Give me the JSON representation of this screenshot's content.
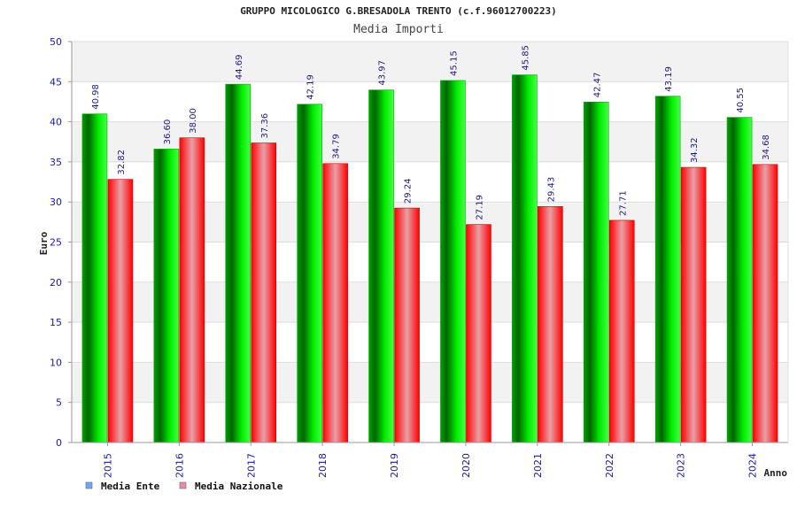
{
  "chart_data": {
    "type": "bar",
    "title": "GRUPPO MICOLOGICO G.BRESADOLA TRENTO (c.f.96012700223)",
    "subtitle": "Media Importi",
    "xlabel": "Anno",
    "ylabel": "Euro",
    "ylim": [
      0,
      50
    ],
    "yticks": [
      "0",
      "5",
      "10",
      "15",
      "20",
      "25",
      "30",
      "35",
      "40",
      "45",
      "50"
    ],
    "categories": [
      "2015",
      "2016",
      "2017",
      "2018",
      "2019",
      "2020",
      "2021",
      "2022",
      "2023",
      "2024"
    ],
    "series": [
      {
        "name": "Media Ente",
        "values": [
          40.98,
          36.6,
          44.69,
          42.19,
          43.97,
          45.15,
          45.85,
          42.47,
          43.19,
          40.55
        ],
        "labels": [
          "40.98",
          "36.60",
          "44.69",
          "42.19",
          "43.97",
          "45.15",
          "45.85",
          "42.47",
          "43.19",
          "40.55"
        ],
        "color": "#00cc00"
      },
      {
        "name": "Media Nazionale",
        "values": [
          32.82,
          38.0,
          37.36,
          34.79,
          29.24,
          27.19,
          29.43,
          27.71,
          34.32,
          34.68
        ],
        "labels": [
          "32.82",
          "38.00",
          "37.36",
          "34.79",
          "29.24",
          "27.19",
          "29.43",
          "27.71",
          "34.32",
          "34.68"
        ],
        "color": "#ff1a1a"
      }
    ],
    "legend": {
      "placement": "bottom-left",
      "items": [
        {
          "label": "Media Ente",
          "swatch": "#6fa8ff"
        },
        {
          "label": "Media Nazionale",
          "swatch": "#e98bb0"
        }
      ]
    },
    "grid": true,
    "band_colors": [
      "#f2f2f2",
      "#ffffff"
    ]
  }
}
